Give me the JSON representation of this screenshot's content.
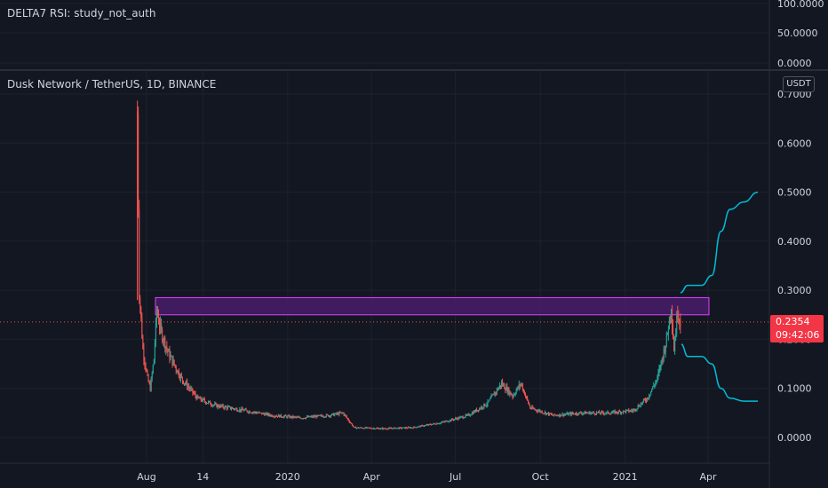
{
  "rsi_pane": {
    "title": "DELTA7 RSI: study_not_auth",
    "ticks": [
      "100.0000",
      "50.0000",
      "0.0000"
    ]
  },
  "main_pane": {
    "title": "Dusk Network / TetherUS, 1D, BINANCE",
    "unit": "USDT",
    "price_ticks": [
      "0.7000",
      "0.6000",
      "0.5000",
      "0.4000",
      "0.3000",
      "0.2000",
      "0.1000",
      "0.0000"
    ],
    "current_price": "0.2354",
    "countdown": "09:42:06"
  },
  "colors": {
    "background": "#131722",
    "up": "#26a69a",
    "down": "#ef5350",
    "zone_fill": "#4a1c6b",
    "zone_stroke": "#e040fb",
    "projection": "#00bcd4",
    "price_label": "#f23645"
  },
  "chart_data": {
    "type": "candlestick",
    "x_ticks": [
      "Aug",
      "14",
      "2020",
      "Apr",
      "Jul",
      "Oct",
      "2021",
      "Apr"
    ],
    "ylim": [
      0,
      0.7
    ],
    "resistance_zone": {
      "low": 0.25,
      "high": 0.285
    },
    "current_price": 0.2354,
    "price_path": [
      [
        "2019-07-22",
        0.66
      ],
      [
        "2019-07-24",
        0.3
      ],
      [
        "2019-07-28",
        0.18
      ],
      [
        "2019-08-02",
        0.12
      ],
      [
        "2019-08-05",
        0.1
      ],
      [
        "2019-08-09",
        0.16
      ],
      [
        "2019-08-12",
        0.26
      ],
      [
        "2019-08-16",
        0.22
      ],
      [
        "2019-08-25",
        0.17
      ],
      [
        "2019-09-08",
        0.12
      ],
      [
        "2019-09-25",
        0.08
      ],
      [
        "2019-10-15",
        0.065
      ],
      [
        "2019-11-15",
        0.055
      ],
      [
        "2019-12-15",
        0.045
      ],
      [
        "2020-01-15",
        0.04
      ],
      [
        "2020-02-15",
        0.045
      ],
      [
        "2020-03-01",
        0.05
      ],
      [
        "2020-03-13",
        0.02
      ],
      [
        "2020-04-15",
        0.018
      ],
      [
        "2020-05-15",
        0.02
      ],
      [
        "2020-06-15",
        0.03
      ],
      [
        "2020-07-15",
        0.045
      ],
      [
        "2020-08-05",
        0.07
      ],
      [
        "2020-08-20",
        0.11
      ],
      [
        "2020-09-01",
        0.085
      ],
      [
        "2020-09-10",
        0.11
      ],
      [
        "2020-09-20",
        0.06
      ],
      [
        "2020-10-15",
        0.045
      ],
      [
        "2020-11-15",
        0.05
      ],
      [
        "2020-12-15",
        0.05
      ],
      [
        "2021-01-10",
        0.055
      ],
      [
        "2021-01-25",
        0.08
      ],
      [
        "2021-02-05",
        0.12
      ],
      [
        "2021-02-15",
        0.2
      ],
      [
        "2021-02-20",
        0.27
      ],
      [
        "2021-02-23",
        0.18
      ],
      [
        "2021-02-27",
        0.26
      ],
      [
        "2021-03-02",
        0.2354
      ]
    ],
    "projection_upper": [
      [
        "2021-03-02",
        0.295
      ],
      [
        "2021-03-10",
        0.31
      ],
      [
        "2021-03-25",
        0.31
      ],
      [
        "2021-04-05",
        0.33
      ],
      [
        "2021-04-15",
        0.42
      ],
      [
        "2021-04-25",
        0.465
      ],
      [
        "2021-05-10",
        0.48
      ],
      [
        "2021-05-25",
        0.5
      ]
    ],
    "projection_lower": [
      [
        "2021-03-03",
        0.19
      ],
      [
        "2021-03-10",
        0.165
      ],
      [
        "2021-03-25",
        0.165
      ],
      [
        "2021-04-05",
        0.15
      ],
      [
        "2021-04-15",
        0.1
      ],
      [
        "2021-04-25",
        0.08
      ],
      [
        "2021-05-10",
        0.074
      ],
      [
        "2021-05-25",
        0.074
      ]
    ]
  }
}
